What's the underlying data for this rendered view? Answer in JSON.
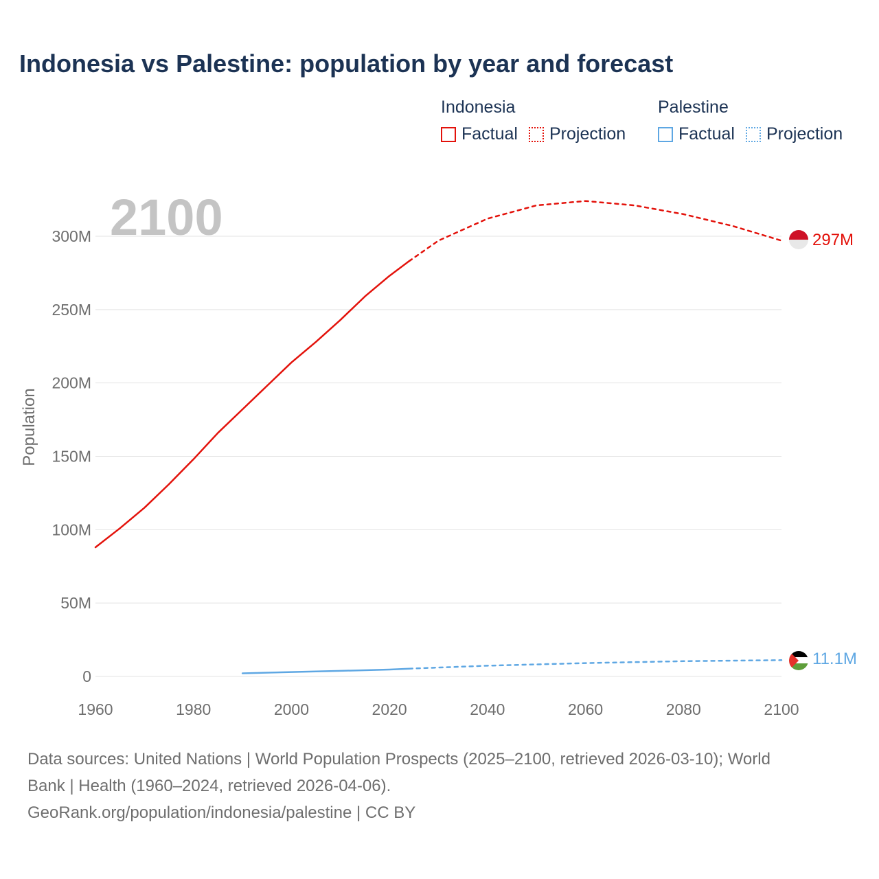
{
  "title": "Indonesia vs Palestine: population by year and forecast",
  "legend": {
    "groups": [
      {
        "name": "Indonesia",
        "color": "#e3120b",
        "factual": "Factual",
        "projection": "Projection"
      },
      {
        "name": "Palestine",
        "color": "#5ea7e3",
        "factual": "Factual",
        "projection": "Projection"
      }
    ]
  },
  "year_overlay": "2100",
  "end_labels": {
    "indonesia": "297M",
    "palestine": "11.1M"
  },
  "sources": {
    "line1": "Data sources: United Nations | World Population Prospects (2025–2100, retrieved 2026-03-10); World",
    "line2": "Bank | Health (1960–2024, retrieved 2026-04-06).",
    "line3": "GeoRank.org/population/indonesia/palestine | CC BY"
  },
  "chart_data": {
    "type": "line",
    "title": "Indonesia vs Palestine: population by year and forecast",
    "xlabel": "",
    "ylabel": "Population",
    "xlim": [
      1960,
      2100
    ],
    "ylim": [
      0,
      300000000
    ],
    "x_ticks": [
      1960,
      1980,
      2000,
      2020,
      2040,
      2060,
      2080,
      2100
    ],
    "y_ticks": [
      0,
      50000000,
      100000000,
      150000000,
      200000000,
      250000000,
      300000000
    ],
    "y_tick_labels": [
      "0",
      "50M",
      "100M",
      "150M",
      "200M",
      "250M",
      "300M"
    ],
    "series": [
      {
        "name": "Indonesia",
        "segment": "Factual",
        "color": "#e3120b",
        "x": [
          1960,
          1965,
          1970,
          1975,
          1980,
          1985,
          1990,
          1995,
          2000,
          2005,
          2010,
          2015,
          2020,
          2024
        ],
        "y": [
          88000000,
          101000000,
          115000000,
          131000000,
          148000000,
          166000000,
          182000000,
          198000000,
          214000000,
          228000000,
          243000000,
          259000000,
          273000000,
          283000000
        ]
      },
      {
        "name": "Indonesia",
        "segment": "Projection",
        "color": "#e3120b",
        "x": [
          2024,
          2030,
          2040,
          2050,
          2060,
          2070,
          2080,
          2090,
          2100
        ],
        "y": [
          283000000,
          297000000,
          312000000,
          321000000,
          324000000,
          321000000,
          315000000,
          307000000,
          297000000
        ]
      },
      {
        "name": "Palestine",
        "segment": "Factual",
        "color": "#5ea7e3",
        "x": [
          1990,
          2000,
          2010,
          2020,
          2024
        ],
        "y": [
          2100000,
          3000000,
          3800000,
          4700000,
          5300000
        ]
      },
      {
        "name": "Palestine",
        "segment": "Projection",
        "color": "#5ea7e3",
        "x": [
          2024,
          2040,
          2060,
          2080,
          2100
        ],
        "y": [
          5300000,
          7300000,
          9100000,
          10400000,
          11100000
        ]
      }
    ],
    "end_values": {
      "Indonesia": "297M",
      "Palestine": "11.1M"
    }
  }
}
